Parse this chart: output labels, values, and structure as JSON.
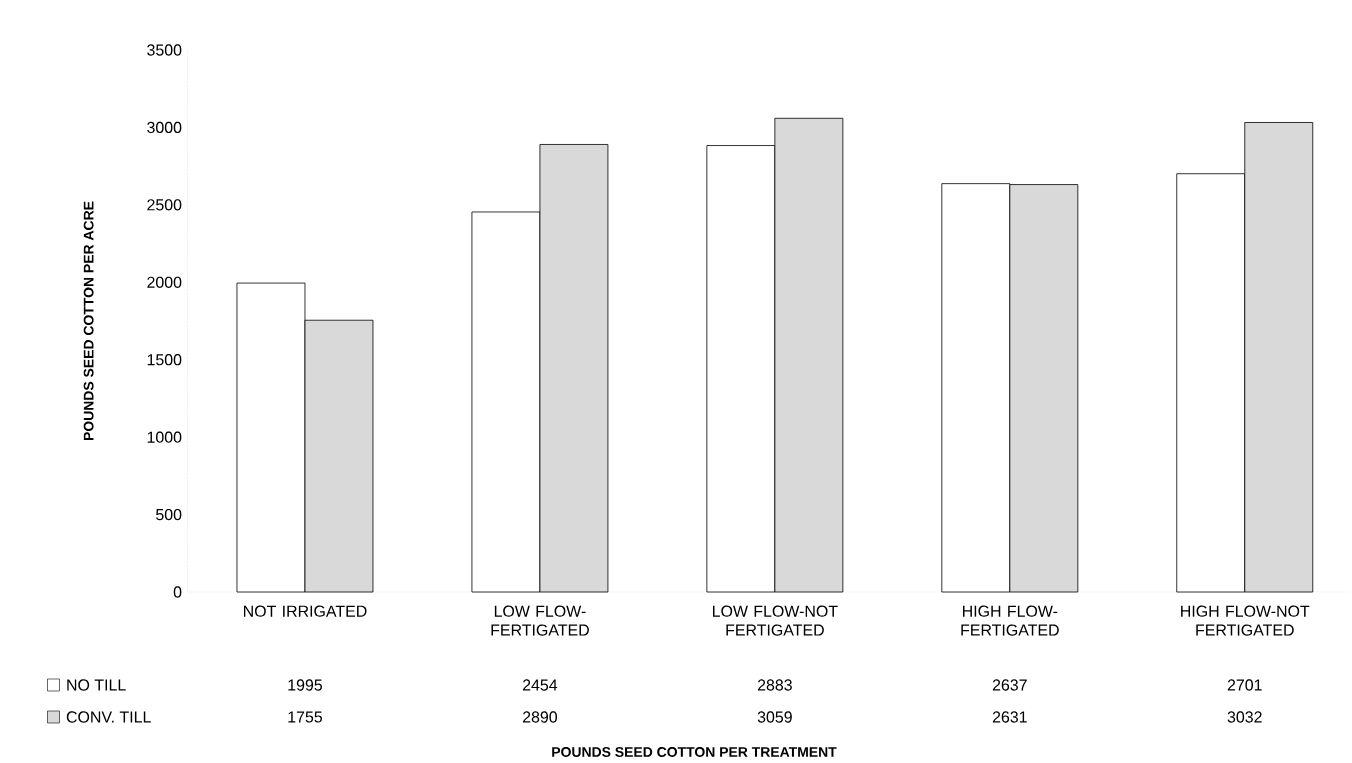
{
  "chart_data": {
    "type": "bar",
    "annotations": [
      "POUNDS SEED COTTON PER TREATMENT"
    ],
    "ylabel": "POUNDS SEED COTTON PER ACRE",
    "categories": [
      "NOT IRRIGATED",
      "LOW FLOW-FERTIGATED",
      "LOW FLOW-NOT FERTIGATED",
      "HIGH FLOW-FERTIGATED",
      "HIGH FLOW-NOT FERTIGATED"
    ],
    "series": [
      {
        "name": "NO TILL",
        "color": "#ffffff",
        "values": [
          1995,
          2454,
          2883,
          2637,
          2701
        ]
      },
      {
        "name": "CONV. TILL",
        "color": "#d9d9d9",
        "values": [
          1755,
          2890,
          3059,
          2631,
          3032
        ]
      }
    ],
    "ylim": [
      0,
      3500
    ],
    "yticks": [
      0,
      500,
      1000,
      1500,
      2000,
      2500,
      3000,
      3500
    ],
    "data_labels": true,
    "legend": "bottom left"
  }
}
